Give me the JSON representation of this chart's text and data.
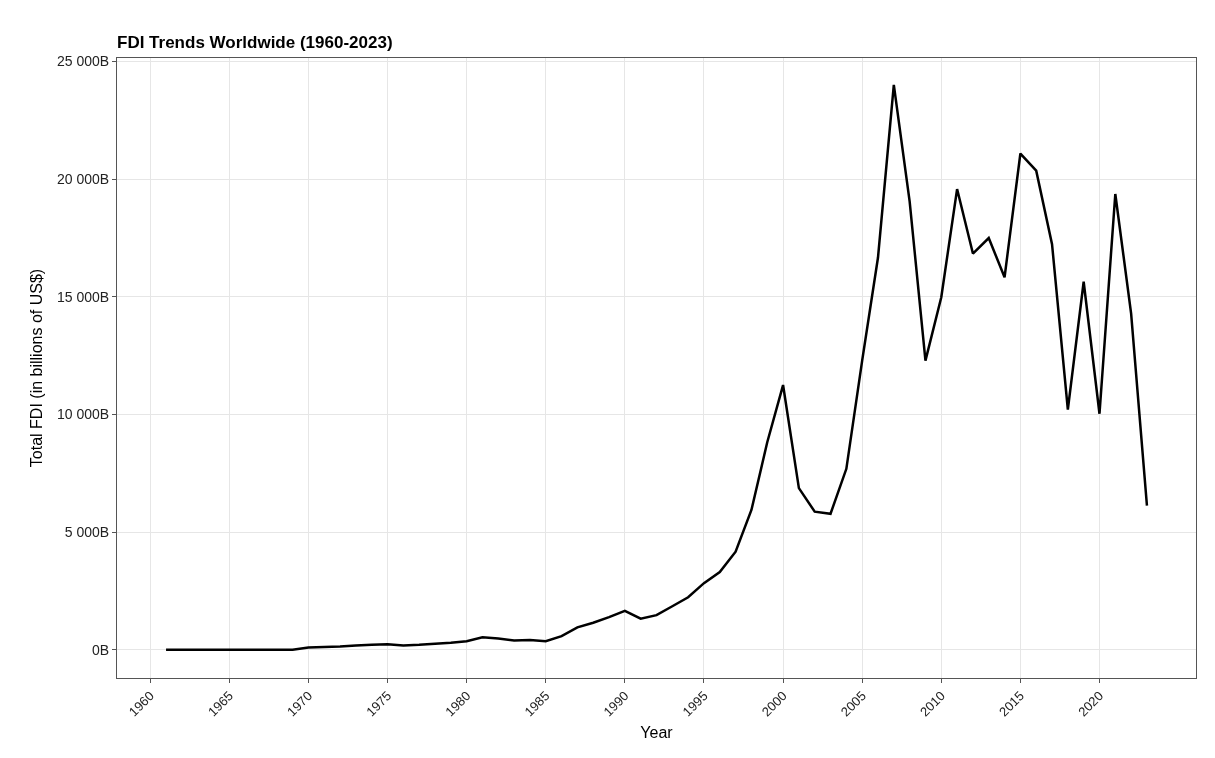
{
  "chart_data": {
    "type": "line",
    "title": "FDI Trends Worldwide (1960-2023)",
    "xlabel": "Year",
    "ylabel": "Total FDI (in billions of US$)",
    "x": [
      1961,
      1962,
      1963,
      1964,
      1965,
      1966,
      1967,
      1968,
      1969,
      1970,
      1971,
      1972,
      1973,
      1974,
      1975,
      1976,
      1977,
      1978,
      1979,
      1980,
      1981,
      1982,
      1983,
      1984,
      1985,
      1986,
      1987,
      1988,
      1989,
      1990,
      1991,
      1992,
      1993,
      1994,
      1995,
      1996,
      1997,
      1998,
      1999,
      2000,
      2001,
      2002,
      2003,
      2004,
      2005,
      2006,
      2007,
      2008,
      2009,
      2010,
      2011,
      2012,
      2013,
      2014,
      2015,
      2016,
      2017,
      2018,
      2019,
      2020,
      2021,
      2022,
      2023
    ],
    "series": [
      {
        "color": "#000000",
        "values": [
          0,
          0,
          0,
          0,
          0,
          0,
          0,
          0,
          0,
          100,
          120,
          140,
          180,
          210,
          230,
          180,
          210,
          260,
          300,
          360,
          530,
          480,
          390,
          420,
          360,
          580,
          950,
          1150,
          1390,
          1650,
          1320,
          1470,
          1850,
          2230,
          2830,
          3300,
          4170,
          5940,
          8820,
          11250,
          6870,
          5870,
          5780,
          7690,
          12290,
          16670,
          24010,
          19060,
          12290,
          14980,
          19580,
          16840,
          17500,
          15830,
          21090,
          20360,
          17240,
          10210,
          15640,
          10030,
          19370,
          14290,
          6130
        ]
      }
    ],
    "xlim": [
      1957.9,
      2026.1
    ],
    "xticks": [
      1960,
      1965,
      1970,
      1975,
      1980,
      1985,
      1990,
      1995,
      2000,
      2005,
      2010,
      2015,
      2020
    ],
    "ylim": [
      -1200,
      25150
    ],
    "yticks": [
      {
        "value": 0,
        "label": "0B"
      },
      {
        "value": 5000,
        "label": "5 000B"
      },
      {
        "value": 10000,
        "label": "10 000B"
      },
      {
        "value": 15000,
        "label": "15 000B"
      },
      {
        "value": 20000,
        "label": "20 000B"
      },
      {
        "value": 25000,
        "label": "25 000B"
      }
    ],
    "grid": true,
    "marker": "none",
    "line_style": "solid"
  }
}
